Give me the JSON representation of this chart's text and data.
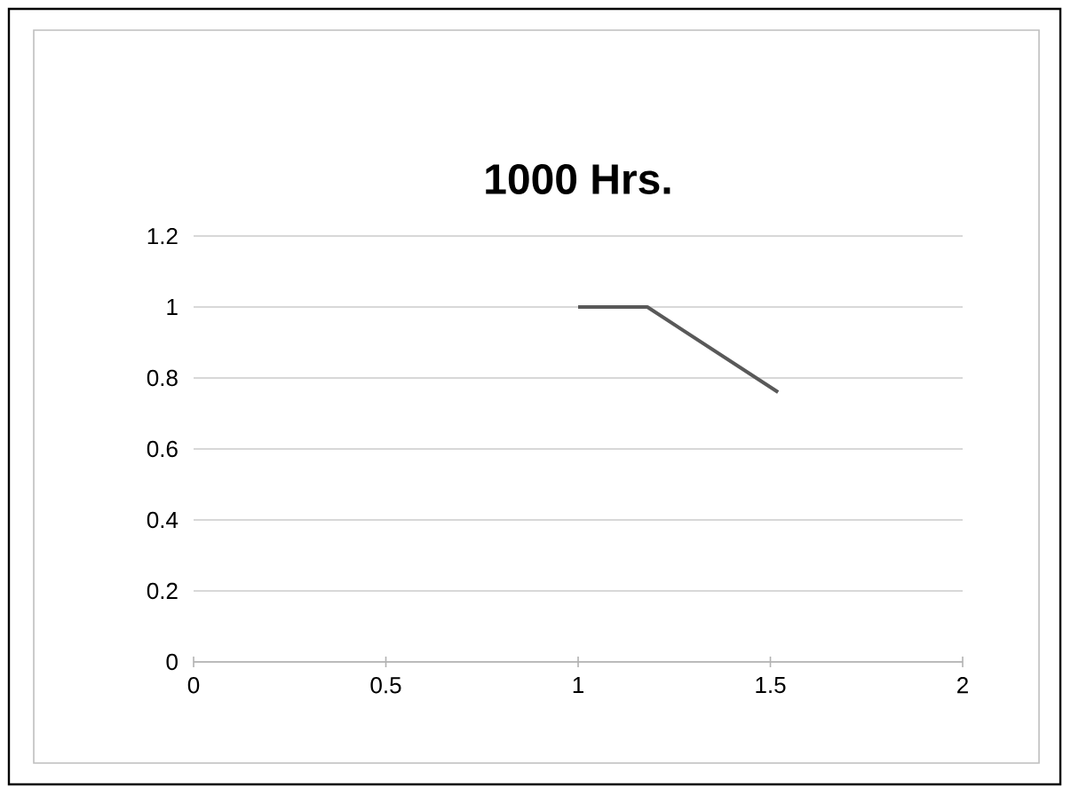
{
  "chart_data": {
    "type": "line",
    "title": "1000 Hrs.",
    "x": [
      1,
      1.18,
      1.52
    ],
    "values": [
      1,
      1,
      0.76
    ],
    "color": "#595959",
    "xlim": [
      0,
      2
    ],
    "xticks": [
      0,
      0.5,
      1,
      1.5,
      2
    ],
    "ylim": [
      0,
      1.2
    ],
    "yticks": [
      0,
      0.2,
      0.4,
      0.6,
      0.8,
      1,
      1.2
    ],
    "grid": "y",
    "marker": "none",
    "line_style": "solid"
  }
}
